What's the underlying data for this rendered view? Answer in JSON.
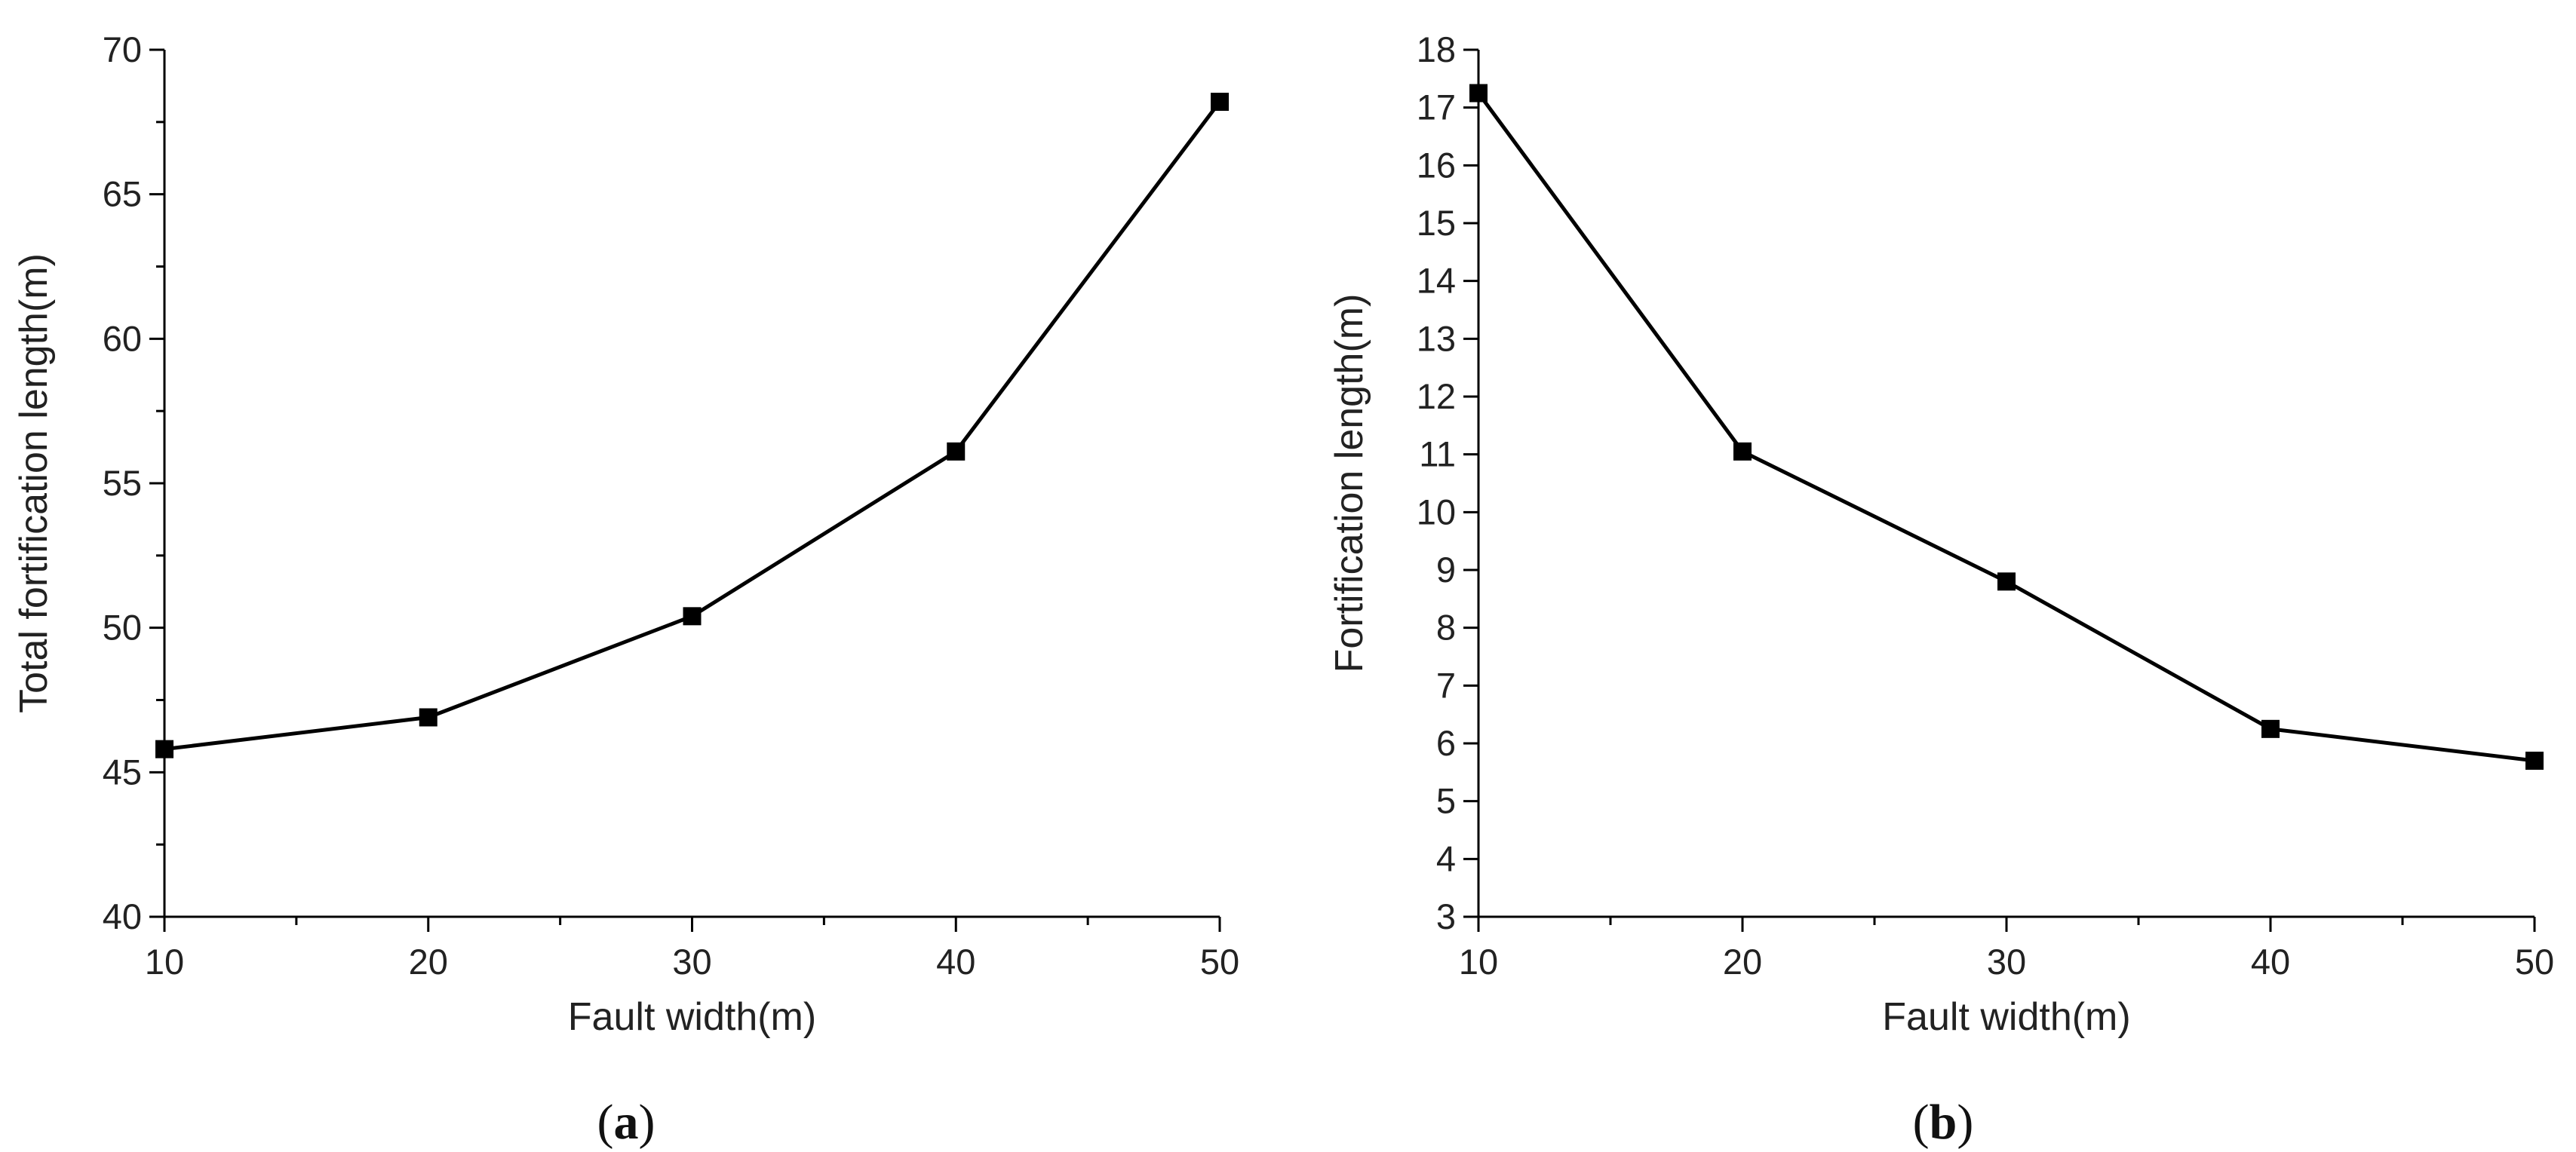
{
  "chart_data": [
    {
      "type": "line",
      "panel_label": "a",
      "xlabel": "Fault width(m)",
      "ylabel": "Total fortification length(m)",
      "xlim": [
        10,
        50
      ],
      "ylim": [
        40,
        70
      ],
      "x_ticks": [
        10,
        20,
        30,
        40,
        50
      ],
      "y_ticks": [
        40,
        45,
        50,
        55,
        60,
        65,
        70
      ],
      "series": [
        {
          "x": [
            10,
            20,
            30,
            40,
            50
          ],
          "values": [
            45.8,
            46.9,
            50.4,
            56.1,
            68.2
          ]
        }
      ],
      "grid": false,
      "marker": "square",
      "color": "#000000"
    },
    {
      "type": "line",
      "panel_label": "b",
      "xlabel": "Fault width(m)",
      "ylabel": "Fortification length(m)",
      "xlim": [
        10,
        50
      ],
      "ylim": [
        3,
        18
      ],
      "x_ticks": [
        10,
        20,
        30,
        40,
        50
      ],
      "y_ticks": [
        3,
        4,
        5,
        6,
        7,
        8,
        9,
        10,
        11,
        12,
        13,
        14,
        15,
        16,
        17,
        18
      ],
      "series": [
        {
          "x": [
            10,
            20,
            30,
            40,
            50
          ],
          "values": [
            17.25,
            11.05,
            8.8,
            6.25,
            5.7
          ]
        }
      ],
      "grid": false,
      "marker": "square",
      "color": "#000000"
    }
  ]
}
